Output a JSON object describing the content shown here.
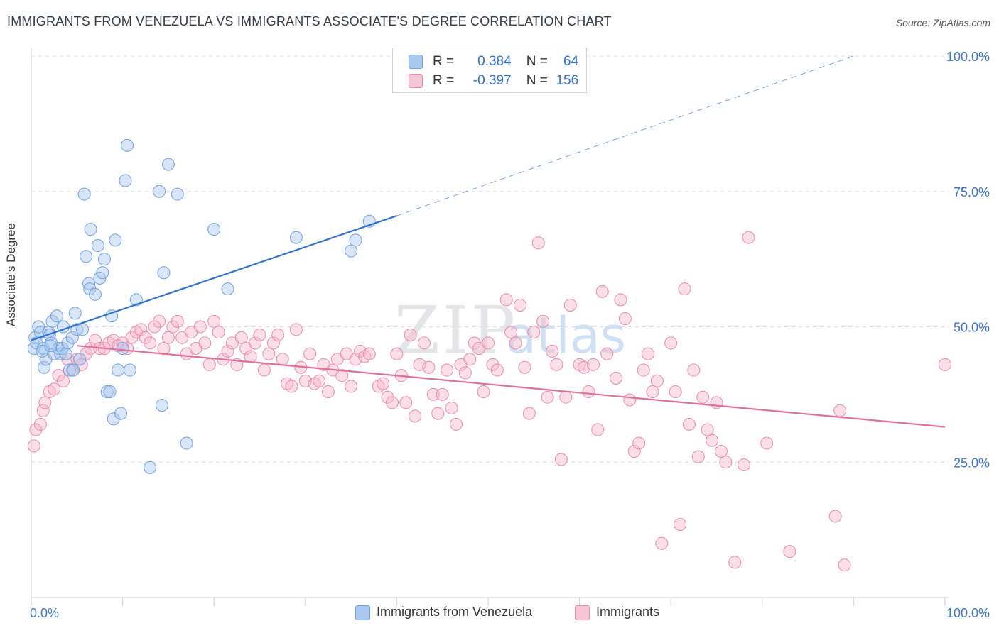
{
  "title": "IMMIGRANTS FROM VENEZUELA VS IMMIGRANTS ASSOCIATE'S DEGREE CORRELATION CHART",
  "source": "Source: ZipAtlas.com",
  "watermark": {
    "zip": "ZIP",
    "atlas": "atlas"
  },
  "legend": {
    "row1": {
      "r_label": "R =",
      "r_value": "0.384",
      "n_label": "N =",
      "n_value": "64"
    },
    "row2": {
      "r_label": "R =",
      "r_value": "-0.397",
      "n_label": "N =",
      "n_value": "156"
    }
  },
  "bottom_legend": {
    "series1": "Immigrants from Venezuela",
    "series2": "Immigrants"
  },
  "colors": {
    "blue_fill": "#a9c8f0",
    "blue_stroke": "#6f9fdc",
    "blue_line": "#2f73d2",
    "pink_fill": "#f6b8cc",
    "pink_stroke": "#e88aaa",
    "pink_line": "#e0709a",
    "grid": "#dcdcdc",
    "tick_text": "#3a74cf"
  },
  "chart_data": {
    "type": "scatter",
    "title": "IMMIGRANTS FROM VENEZUELA VS IMMIGRANTS ASSOCIATE'S DEGREE CORRELATION CHART",
    "xlabel": "",
    "ylabel": "Associate's Degree",
    "xlim": [
      0,
      100
    ],
    "ylim": [
      0,
      100
    ],
    "x_tick_labels": [
      "0.0%",
      "100.0%"
    ],
    "y_ticks": [
      25,
      50,
      75,
      100
    ],
    "y_tick_labels": [
      "25.0%",
      "50.0%",
      "75.0%",
      "100.0%"
    ],
    "grid": true,
    "legend_position": "top-center",
    "series": [
      {
        "name": "Immigrants from Venezuela",
        "r": 0.384,
        "n": 64,
        "trend": {
          "x0": 0,
          "y0": 47.5,
          "x1": 40,
          "y1": 70.5,
          "dashed_to_x": 90,
          "dashed_to_y": 100
        },
        "points": [
          [
            0.3,
            46
          ],
          [
            0.4,
            48
          ],
          [
            0.6,
            47
          ],
          [
            0.8,
            50
          ],
          [
            1,
            49
          ],
          [
            1.3,
            46
          ],
          [
            1.4,
            42.5
          ],
          [
            1.6,
            44
          ],
          [
            1.9,
            49
          ],
          [
            2,
            48.5
          ],
          [
            2.2,
            47
          ],
          [
            2.3,
            51
          ],
          [
            2.5,
            45
          ],
          [
            2.8,
            52
          ],
          [
            3,
            46
          ],
          [
            3.2,
            45
          ],
          [
            3.4,
            46
          ],
          [
            3.5,
            50
          ],
          [
            3.8,
            45
          ],
          [
            4,
            47
          ],
          [
            4.2,
            42
          ],
          [
            4.5,
            48
          ],
          [
            4.6,
            42
          ],
          [
            4.8,
            52.5
          ],
          [
            5,
            49.5
          ],
          [
            5.3,
            44
          ],
          [
            5.6,
            49.5
          ],
          [
            5.8,
            74.5
          ],
          [
            6,
            63
          ],
          [
            6.3,
            58
          ],
          [
            6.4,
            57
          ],
          [
            6.5,
            68
          ],
          [
            7,
            56
          ],
          [
            7.3,
            65
          ],
          [
            7.5,
            59
          ],
          [
            7.8,
            60
          ],
          [
            8,
            62.5
          ],
          [
            8.3,
            38
          ],
          [
            8.6,
            38
          ],
          [
            8.8,
            52
          ],
          [
            9,
            33
          ],
          [
            9.2,
            66
          ],
          [
            9.5,
            42
          ],
          [
            9.8,
            34
          ],
          [
            10,
            46
          ],
          [
            10.3,
            77
          ],
          [
            10.5,
            83.5
          ],
          [
            10.8,
            42
          ],
          [
            11.5,
            55
          ],
          [
            13,
            24
          ],
          [
            14,
            75
          ],
          [
            14.3,
            35.5
          ],
          [
            14.5,
            60
          ],
          [
            15,
            80
          ],
          [
            16,
            74.5
          ],
          [
            17,
            28.5
          ],
          [
            20,
            68
          ],
          [
            21.5,
            57
          ],
          [
            29,
            66.5
          ],
          [
            35,
            64
          ],
          [
            35.5,
            66
          ],
          [
            37,
            69.5
          ],
          [
            1.2,
            45.5
          ],
          [
            2.1,
            46.5
          ]
        ]
      },
      {
        "name": "Immigrants",
        "r": -0.397,
        "n": 156,
        "trend": {
          "x0": 5,
          "y0": 46.5,
          "x1": 100,
          "y1": 31.5
        },
        "points": [
          [
            0.3,
            28
          ],
          [
            0.5,
            31
          ],
          [
            1,
            32
          ],
          [
            1.3,
            34.5
          ],
          [
            1.5,
            36
          ],
          [
            2,
            38
          ],
          [
            2.5,
            38.5
          ],
          [
            3,
            41
          ],
          [
            3.5,
            40
          ],
          [
            4,
            44
          ],
          [
            4.5,
            42
          ],
          [
            5,
            44
          ],
          [
            5.5,
            43
          ],
          [
            6,
            45
          ],
          [
            6.5,
            46
          ],
          [
            7,
            47.5
          ],
          [
            7.5,
            46
          ],
          [
            8,
            46
          ],
          [
            8.5,
            47
          ],
          [
            9,
            47.5
          ],
          [
            9.5,
            46.5
          ],
          [
            10,
            47
          ],
          [
            10.5,
            46
          ],
          [
            11,
            48
          ],
          [
            11.5,
            49
          ],
          [
            12,
            49.5
          ],
          [
            12.5,
            48
          ],
          [
            13,
            47
          ],
          [
            13.5,
            50
          ],
          [
            14,
            51
          ],
          [
            14.5,
            46
          ],
          [
            15,
            48
          ],
          [
            15.5,
            50
          ],
          [
            16,
            51
          ],
          [
            16.5,
            48
          ],
          [
            17,
            45
          ],
          [
            17.5,
            49
          ],
          [
            18,
            46
          ],
          [
            18.5,
            50
          ],
          [
            19,
            47
          ],
          [
            19.5,
            43
          ],
          [
            20,
            51
          ],
          [
            20.5,
            49
          ],
          [
            21,
            44
          ],
          [
            21.5,
            45.5
          ],
          [
            22,
            47
          ],
          [
            22.5,
            43
          ],
          [
            23,
            48
          ],
          [
            23.5,
            46
          ],
          [
            24,
            44.5
          ],
          [
            24.5,
            47
          ],
          [
            25,
            48.5
          ],
          [
            25.5,
            42
          ],
          [
            26,
            45
          ],
          [
            26.5,
            47
          ],
          [
            27,
            48.5
          ],
          [
            27.5,
            44
          ],
          [
            28,
            39.5
          ],
          [
            28.5,
            39
          ],
          [
            29,
            49.5
          ],
          [
            29.5,
            42.5
          ],
          [
            30,
            40
          ],
          [
            30.5,
            45
          ],
          [
            31,
            39.5
          ],
          [
            31.5,
            40
          ],
          [
            32,
            43
          ],
          [
            32.5,
            38
          ],
          [
            33,
            42
          ],
          [
            33.5,
            44
          ],
          [
            34,
            41
          ],
          [
            34.5,
            45
          ],
          [
            35,
            39
          ],
          [
            35.5,
            44
          ],
          [
            36,
            45.5
          ],
          [
            36.5,
            44.5
          ],
          [
            37,
            45
          ],
          [
            38,
            39
          ],
          [
            38.5,
            39.5
          ],
          [
            39,
            37
          ],
          [
            39.5,
            36
          ],
          [
            40,
            45
          ],
          [
            40.5,
            41
          ],
          [
            41,
            36
          ],
          [
            41.5,
            48.5
          ],
          [
            42,
            33.5
          ],
          [
            42.5,
            43
          ],
          [
            43,
            47
          ],
          [
            43.5,
            42.5
          ],
          [
            44,
            37.5
          ],
          [
            44.5,
            34
          ],
          [
            45,
            37.5
          ],
          [
            45.5,
            42
          ],
          [
            46,
            35
          ],
          [
            46.5,
            32
          ],
          [
            47,
            43
          ],
          [
            47.5,
            41.5
          ],
          [
            48,
            44
          ],
          [
            48.5,
            47
          ],
          [
            49,
            46
          ],
          [
            49.5,
            38
          ],
          [
            50,
            47
          ],
          [
            50.5,
            43
          ],
          [
            51,
            42
          ],
          [
            52,
            55
          ],
          [
            52.5,
            49
          ],
          [
            53,
            47
          ],
          [
            53.5,
            54
          ],
          [
            54,
            42.5
          ],
          [
            54.5,
            34
          ],
          [
            55,
            49
          ],
          [
            55.5,
            65.5
          ],
          [
            56,
            51
          ],
          [
            56.5,
            37
          ],
          [
            57,
            45.5
          ],
          [
            57.5,
            43
          ],
          [
            58,
            25.5
          ],
          [
            58.5,
            37
          ],
          [
            59,
            54
          ],
          [
            60,
            43
          ],
          [
            60.5,
            42.5
          ],
          [
            61,
            38
          ],
          [
            61.5,
            43
          ],
          [
            62,
            31
          ],
          [
            62.5,
            56.5
          ],
          [
            63,
            45
          ],
          [
            64,
            40.5
          ],
          [
            64.5,
            55
          ],
          [
            65,
            51.5
          ],
          [
            65.5,
            36.5
          ],
          [
            66,
            27
          ],
          [
            66.5,
            28.5
          ],
          [
            67,
            42
          ],
          [
            67.5,
            45
          ],
          [
            68,
            38
          ],
          [
            68.5,
            40
          ],
          [
            69,
            10
          ],
          [
            70,
            47
          ],
          [
            70.5,
            38
          ],
          [
            71,
            13.5
          ],
          [
            71.5,
            57
          ],
          [
            72,
            32
          ],
          [
            72.5,
            42
          ],
          [
            73,
            26
          ],
          [
            73.5,
            37
          ],
          [
            74,
            31
          ],
          [
            74.5,
            29
          ],
          [
            75,
            36
          ],
          [
            75.5,
            27
          ],
          [
            76,
            25
          ],
          [
            77,
            6.5
          ],
          [
            78,
            24.5
          ],
          [
            78.5,
            66.5
          ],
          [
            80.5,
            28.5
          ],
          [
            83,
            8.5
          ],
          [
            88,
            15
          ],
          [
            88.5,
            34.5
          ],
          [
            89,
            6
          ],
          [
            100,
            43
          ]
        ]
      }
    ]
  }
}
